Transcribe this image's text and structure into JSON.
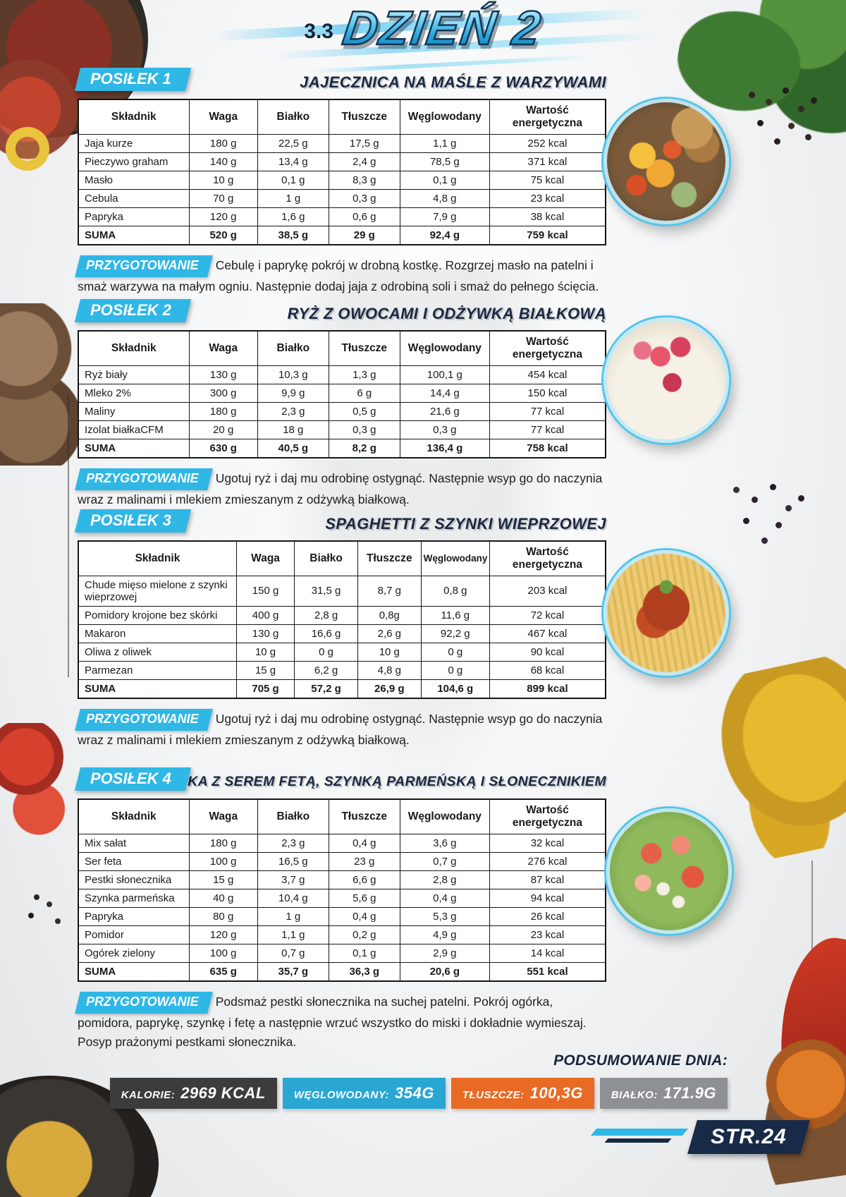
{
  "page": {
    "section_number": "3.3",
    "title": "DZIEŃ 2",
    "page_label": "STR.24"
  },
  "accent_color": "#2fb7e5",
  "table_headers": [
    "Składnik",
    "Waga",
    "Białko",
    "Tłuszcze",
    "Węglowodany",
    "Wartość\nenergetyczna"
  ],
  "meals": [
    {
      "badge": "POSIŁEK 1",
      "title": "JAJECZNICA NA MAŚLE Z WARZYWAMI",
      "rows": [
        [
          "Jaja kurze",
          "180 g",
          "22,5 g",
          "17,5 g",
          "1,1 g",
          "252 kcal"
        ],
        [
          "Pieczywo graham",
          "140 g",
          "13,4 g",
          "2,4 g",
          "78,5 g",
          "371 kcal"
        ],
        [
          "Masło",
          "10 g",
          "0,1 g",
          "8,3 g",
          "0,1 g",
          "75 kcal"
        ],
        [
          "Cebula",
          "70 g",
          "1 g",
          "0,3 g",
          "4,8 g",
          "23 kcal"
        ],
        [
          "Papryka",
          "120 g",
          "1,6 g",
          "0,6 g",
          "7,9 g",
          "38 kcal"
        ]
      ],
      "suma": [
        "SUMA",
        "520 g",
        "38,5 g",
        "29 g",
        "92,4 g",
        "759 kcal"
      ],
      "prep_label": "PRZYGOTOWANIE",
      "prep_text": "Cebulę i paprykę pokrój w drobną kostkę. Rozgrzej masło na patelni i smaż warzywa na małym ogniu. Następnie dodaj jaja z odrobiną soli i smaż do pełnego ścięcia."
    },
    {
      "badge": "POSIŁEK 2",
      "title": "RYŻ Z OWOCAMI I ODŻYWKĄ BIAŁKOWĄ",
      "rows": [
        [
          "Ryż biały",
          "130 g",
          "10,3 g",
          "1,3 g",
          "100,1 g",
          "454 kcal"
        ],
        [
          "Mleko 2%",
          "300 g",
          "9,9 g",
          "6 g",
          "14,4 g",
          "150 kcal"
        ],
        [
          "Maliny",
          "180 g",
          "2,3 g",
          "0,5 g",
          "21,6 g",
          "77 kcal"
        ],
        [
          "Izolat białkaCFM",
          "20 g",
          "18 g",
          "0,3 g",
          "0,3 g",
          "77 kcal"
        ]
      ],
      "suma": [
        "SUMA",
        "630 g",
        "40,5 g",
        "8,2 g",
        "136,4 g",
        "758 kcal"
      ],
      "prep_label": "PRZYGOTOWANIE",
      "prep_text": "Ugotuj ryż i daj mu odrobinę ostygnąć. Następnie wsyp go do naczynia wraz z malinami i mlekiem zmieszanym z odżywką białkową."
    },
    {
      "badge": "POSIŁEK 3",
      "title": "SPAGHETTI Z SZYNKI WIEPRZOWEJ",
      "rows": [
        [
          "Chude mięso mielone z szynki wieprzowej",
          "150 g",
          "31,5 g",
          "8,7 g",
          "0,8 g",
          "203 kcal"
        ],
        [
          "Pomidory krojone bez skórki",
          "400 g",
          "2,8 g",
          "0,8g",
          "11,6 g",
          "72 kcal"
        ],
        [
          "Makaron",
          "130 g",
          "16,6 g",
          "2,6 g",
          "92,2 g",
          "467 kcal"
        ],
        [
          "Oliwa z oliwek",
          "10 g",
          "0 g",
          "10 g",
          "0 g",
          "90 kcal"
        ],
        [
          "Parmezan",
          "15 g",
          "6,2 g",
          "4,8 g",
          "0 g",
          "68 kcal"
        ]
      ],
      "suma": [
        "SUMA",
        "705 g",
        "57,2 g",
        "26,9 g",
        "104,6 g",
        "899 kcal"
      ],
      "prep_label": "PRZYGOTOWANIE",
      "prep_text": "Ugotuj ryż i daj mu odrobinę ostygnąć. Następnie wsyp go do naczynia wraz z malinami i mlekiem zmieszanym z odżywką białkową."
    },
    {
      "badge": "POSIŁEK 4",
      "title": "SAŁATKA Z SEREM FETĄ, SZYNKĄ PARMEŃSKĄ I SŁONECZNIKIEM",
      "rows": [
        [
          "Mix sałat",
          "180 g",
          "2,3 g",
          "0,4 g",
          "3,6 g",
          "32 kcal"
        ],
        [
          "Ser feta",
          "100 g",
          "16,5 g",
          "23 g",
          "0,7 g",
          "276 kcal"
        ],
        [
          "Pestki słonecznika",
          "15 g",
          "3,7 g",
          "6,6 g",
          "2,8 g",
          "87 kcal"
        ],
        [
          "Szynka parmeńska",
          "40 g",
          "10,4 g",
          "5,6 g",
          "0,4 g",
          "94 kcal"
        ],
        [
          "Papryka",
          "80 g",
          "1 g",
          "0,4 g",
          "5,3 g",
          "26 kcal"
        ],
        [
          "Pomidor",
          "120 g",
          "1,1 g",
          "0,2 g",
          "4,9 g",
          "23 kcal"
        ],
        [
          "Ogórek zielony",
          "100 g",
          "0,7 g",
          "0,1 g",
          "2,9 g",
          "14 kcal"
        ]
      ],
      "suma": [
        "SUMA",
        "635 g",
        "35,7 g",
        "36,3 g",
        "20,6 g",
        "551 kcal"
      ],
      "prep_label": "PRZYGOTOWANIE",
      "prep_text": "Podsmaż pestki słonecznika na suchej patelni. Pokrój ogórka, pomidora, paprykę,  szynkę i fetę a następnie wrzuć wszystko do miski i dokładnie wymieszaj. Posyp prażonymi pestkami słonecznika."
    }
  ],
  "summary": {
    "title": "PODSUMOWANIE DNIA:",
    "items": [
      {
        "key": "kalorie",
        "label": "KALORIE:",
        "value": "2969 KCAL",
        "color": "#3c3c3c"
      },
      {
        "key": "weglowodany",
        "label": "WĘGLOWODANY:",
        "value": "354G",
        "color": "#2aa6d3"
      },
      {
        "key": "tluszcze",
        "label": "TŁUSZCZE:",
        "value": "100,3G",
        "color": "#e96a24"
      },
      {
        "key": "bialko",
        "label": "BIAŁKO:",
        "value": "171.9G",
        "color": "#8d9094"
      }
    ]
  }
}
